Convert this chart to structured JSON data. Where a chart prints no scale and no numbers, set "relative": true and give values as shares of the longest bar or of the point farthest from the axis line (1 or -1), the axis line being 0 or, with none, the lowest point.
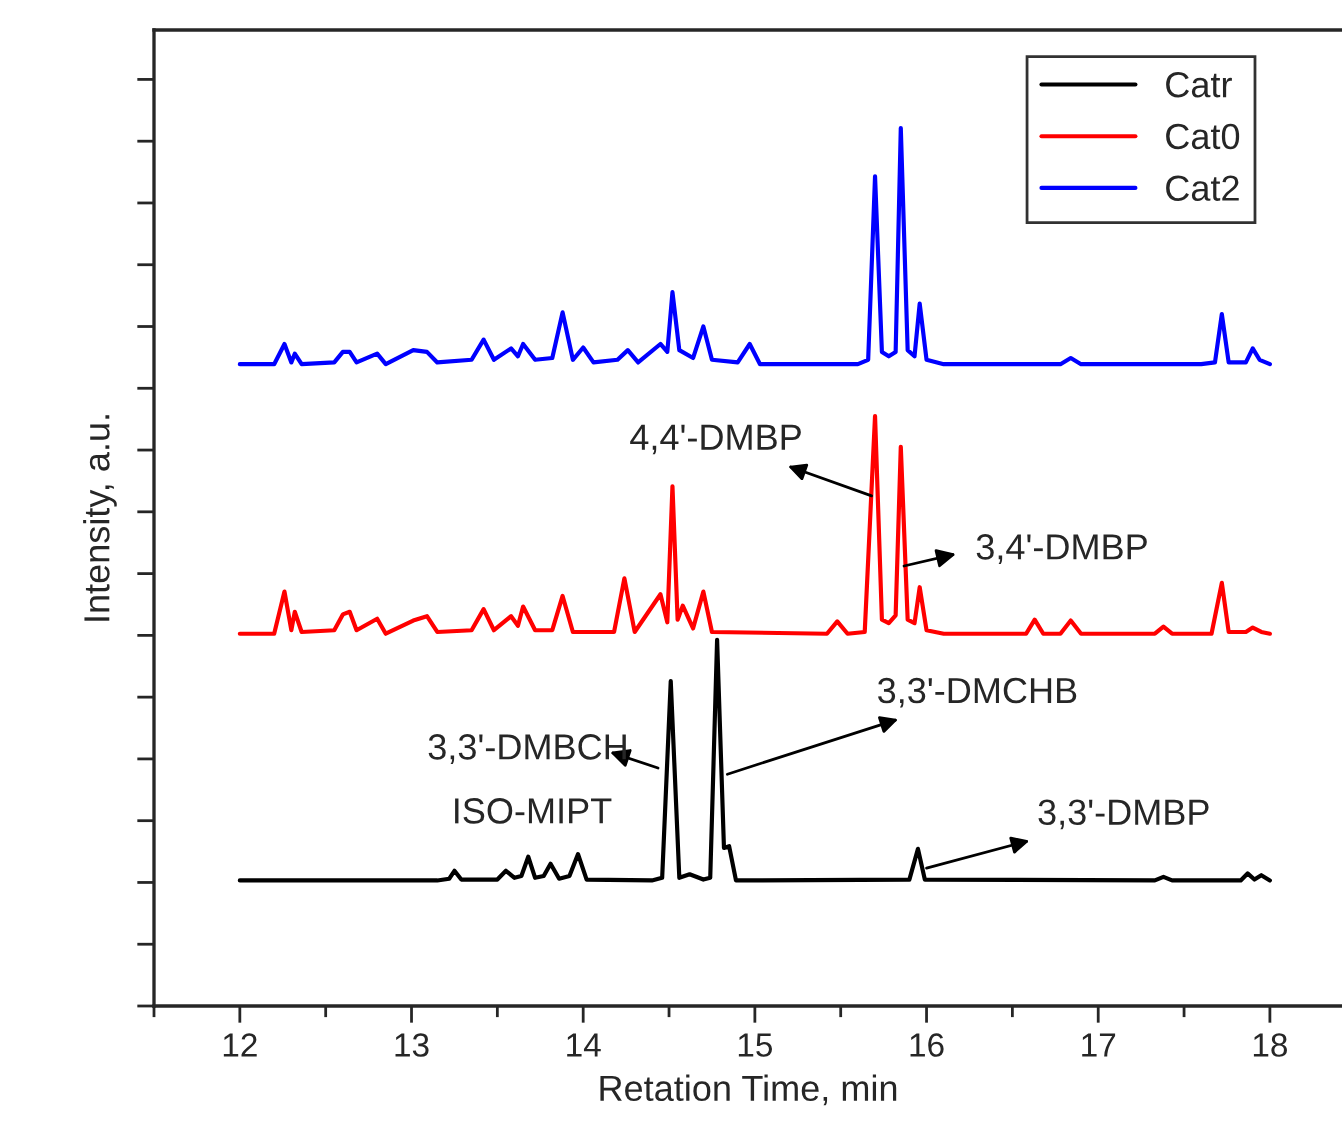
{
  "chart_data": {
    "type": "line",
    "relative": true,
    "xlabel": "Retation Time, min",
    "ylabel": "Intensity, a.u.",
    "xlim": [
      11.5,
      18.42
    ],
    "xticks": [
      12,
      13,
      14,
      15,
      16,
      17,
      18
    ],
    "tick_labels": "x",
    "legend": "top right",
    "grid": false,
    "marker": "none",
    "line_style": "solid",
    "series": [
      {
        "name": "Catr",
        "color": "#000000",
        "x": [
          12.0,
          13.15,
          13.22,
          13.25,
          13.29,
          13.5,
          13.55,
          13.6,
          13.64,
          13.68,
          13.72,
          13.77,
          13.81,
          13.86,
          13.92,
          13.97,
          14.02,
          14.4,
          14.46,
          14.51,
          14.56,
          14.62,
          14.7,
          14.74,
          14.78,
          14.82,
          14.85,
          14.89,
          15.9,
          15.95,
          15.99,
          17.33,
          17.38,
          17.43,
          17.83,
          17.87,
          17.91,
          17.95,
          18.0
        ],
        "values": [
          0.143,
          0.143,
          0.145,
          0.154,
          0.144,
          0.144,
          0.154,
          0.146,
          0.148,
          0.17,
          0.146,
          0.148,
          0.162,
          0.145,
          0.148,
          0.173,
          0.144,
          0.143,
          0.146,
          0.37,
          0.146,
          0.15,
          0.144,
          0.146,
          0.417,
          0.18,
          0.182,
          0.143,
          0.144,
          0.179,
          0.144,
          0.143,
          0.147,
          0.143,
          0.143,
          0.151,
          0.144,
          0.149,
          0.143
        ]
      },
      {
        "name": "Cat0",
        "color": "#ff0000",
        "x": [
          12.0,
          12.2,
          12.26,
          12.3,
          12.32,
          12.36,
          12.55,
          12.6,
          12.64,
          12.68,
          12.8,
          12.85,
          13.01,
          13.09,
          13.15,
          13.35,
          13.42,
          13.48,
          13.58,
          13.62,
          13.65,
          13.72,
          13.82,
          13.88,
          13.94,
          14.18,
          14.24,
          14.3,
          14.45,
          14.49,
          14.52,
          14.55,
          14.58,
          14.64,
          14.7,
          14.75,
          15.42,
          15.48,
          15.54,
          15.64,
          15.7,
          15.74,
          15.78,
          15.82,
          15.85,
          15.89,
          15.93,
          15.96,
          16.0,
          16.1,
          16.58,
          16.63,
          16.68,
          16.78,
          16.84,
          16.9,
          17.33,
          17.38,
          17.43,
          17.66,
          17.72,
          17.76,
          17.86,
          17.9,
          17.95,
          18.0
        ],
        "values": [
          0.424,
          0.424,
          0.472,
          0.428,
          0.449,
          0.426,
          0.428,
          0.446,
          0.449,
          0.428,
          0.441,
          0.424,
          0.439,
          0.444,
          0.426,
          0.428,
          0.452,
          0.428,
          0.444,
          0.433,
          0.455,
          0.428,
          0.428,
          0.467,
          0.426,
          0.426,
          0.487,
          0.426,
          0.469,
          0.437,
          0.592,
          0.44,
          0.456,
          0.43,
          0.472,
          0.426,
          0.424,
          0.438,
          0.424,
          0.426,
          0.672,
          0.44,
          0.436,
          0.445,
          0.637,
          0.44,
          0.436,
          0.477,
          0.428,
          0.424,
          0.424,
          0.44,
          0.424,
          0.424,
          0.439,
          0.424,
          0.424,
          0.432,
          0.424,
          0.424,
          0.482,
          0.426,
          0.426,
          0.431,
          0.426,
          0.424
        ]
      },
      {
        "name": "Cat2",
        "color": "#0000ff",
        "x": [
          12.0,
          12.2,
          12.26,
          12.3,
          12.32,
          12.36,
          12.55,
          12.6,
          12.64,
          12.68,
          12.8,
          12.85,
          13.01,
          13.09,
          13.15,
          13.35,
          13.42,
          13.48,
          13.58,
          13.62,
          13.65,
          13.72,
          13.82,
          13.88,
          13.94,
          14.0,
          14.06,
          14.2,
          14.26,
          14.32,
          14.45,
          14.49,
          14.52,
          14.56,
          14.64,
          14.7,
          14.75,
          14.9,
          14.97,
          15.03,
          15.6,
          15.66,
          15.7,
          15.74,
          15.78,
          15.82,
          15.85,
          15.89,
          15.93,
          15.96,
          16.0,
          16.1,
          16.78,
          16.84,
          16.9,
          17.6,
          17.68,
          17.72,
          17.76,
          17.86,
          17.9,
          17.94,
          18.0
        ],
        "values": [
          0.731,
          0.731,
          0.754,
          0.733,
          0.743,
          0.731,
          0.733,
          0.745,
          0.745,
          0.733,
          0.743,
          0.731,
          0.747,
          0.745,
          0.733,
          0.736,
          0.759,
          0.736,
          0.749,
          0.74,
          0.754,
          0.736,
          0.738,
          0.79,
          0.736,
          0.75,
          0.733,
          0.736,
          0.747,
          0.733,
          0.754,
          0.745,
          0.813,
          0.747,
          0.738,
          0.774,
          0.736,
          0.733,
          0.754,
          0.731,
          0.731,
          0.736,
          0.945,
          0.745,
          0.74,
          0.745,
          1.0,
          0.747,
          0.74,
          0.8,
          0.736,
          0.731,
          0.731,
          0.738,
          0.731,
          0.731,
          0.733,
          0.788,
          0.733,
          0.733,
          0.749,
          0.736,
          0.731
        ]
      }
    ],
    "annotations": [
      {
        "text": "4,4'-DMBP",
        "x": 15.68,
        "y": 0.581
      },
      "3,4'-DMBP",
      "3,3'-DMBCH",
      {
        "text": "3,3'-DMCHB",
        "x": 14.84,
        "y": 0.264
      },
      "ISO-MIPT",
      {
        "text": "3,3'-DMBP",
        "x": 16.0,
        "y": 0.157
      }
    ]
  }
}
